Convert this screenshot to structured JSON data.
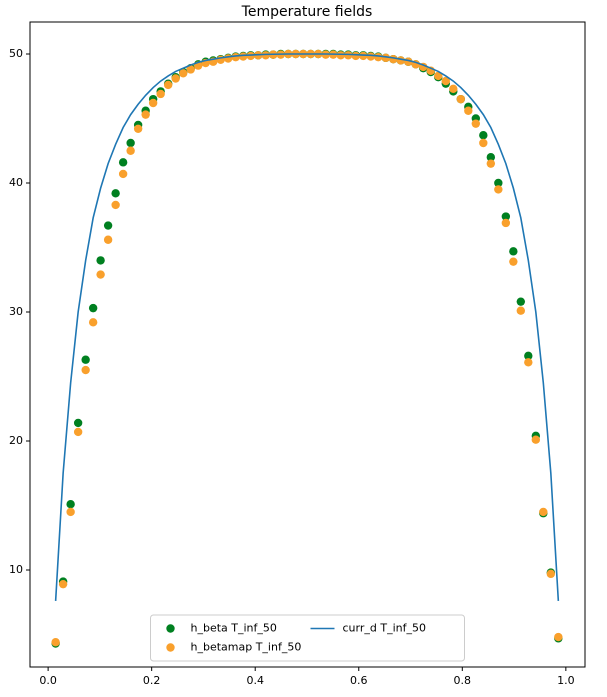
{
  "chart_data": {
    "type": "scatter",
    "title": "Temperature fields",
    "x": [
      0.0145,
      0.029,
      0.0435,
      0.058,
      0.0725,
      0.087,
      0.1014,
      0.1159,
      0.1304,
      0.1449,
      0.1594,
      0.1739,
      0.1884,
      0.2029,
      0.2174,
      0.2319,
      0.2464,
      0.2609,
      0.2754,
      0.2899,
      0.3043,
      0.3188,
      0.3333,
      0.3478,
      0.3623,
      0.3768,
      0.3913,
      0.4058,
      0.4203,
      0.4348,
      0.4493,
      0.4638,
      0.4783,
      0.4928,
      0.5072,
      0.5217,
      0.5362,
      0.5507,
      0.5652,
      0.5797,
      0.5942,
      0.6087,
      0.6232,
      0.6377,
      0.6522,
      0.6667,
      0.6812,
      0.6957,
      0.7101,
      0.7246,
      0.7391,
      0.7536,
      0.7681,
      0.7826,
      0.7971,
      0.8116,
      0.8261,
      0.8406,
      0.8551,
      0.8696,
      0.8841,
      0.8986,
      0.913,
      0.9275,
      0.942,
      0.9565,
      0.971,
      0.9855
    ],
    "series": [
      {
        "name": "h_beta T_inf_50",
        "type": "scatter",
        "color": "#008020",
        "values": [
          4.3,
          9.1,
          15.1,
          21.4,
          26.3,
          30.3,
          34.0,
          36.7,
          39.2,
          41.6,
          43.1,
          44.5,
          45.6,
          46.5,
          47.1,
          47.7,
          48.2,
          48.6,
          48.9,
          49.2,
          49.4,
          49.5,
          49.6,
          49.7,
          49.8,
          49.85,
          49.9,
          49.9,
          49.95,
          49.95,
          50,
          50,
          50,
          50,
          50,
          50,
          50,
          50,
          49.95,
          49.95,
          49.9,
          49.9,
          49.85,
          49.8,
          49.7,
          49.6,
          49.5,
          49.4,
          49.2,
          48.9,
          48.6,
          48.2,
          47.7,
          47.1,
          46.5,
          45.9,
          45.0,
          43.7,
          42.0,
          40.0,
          37.4,
          34.7,
          30.8,
          26.6,
          20.4,
          14.4,
          9.8,
          4.7
        ]
      },
      {
        "name": "h_betamap T_inf_50",
        "type": "scatter",
        "color": "#f9a02c",
        "values": [
          4.4,
          8.9,
          14.5,
          20.7,
          25.5,
          29.2,
          32.9,
          35.6,
          38.3,
          40.7,
          42.5,
          44.2,
          45.3,
          46.2,
          46.9,
          47.6,
          48.1,
          48.5,
          48.8,
          49.1,
          49.3,
          49.4,
          49.55,
          49.65,
          49.75,
          49.8,
          49.85,
          49.9,
          49.9,
          49.95,
          49.95,
          50,
          50,
          50,
          50,
          50,
          49.95,
          49.95,
          49.9,
          49.9,
          49.85,
          49.85,
          49.8,
          49.75,
          49.7,
          49.6,
          49.5,
          49.4,
          49.2,
          49.0,
          48.7,
          48.3,
          47.9,
          47.3,
          46.5,
          45.6,
          44.6,
          43.1,
          41.5,
          39.5,
          36.9,
          33.9,
          30.1,
          26.1,
          20.1,
          14.5,
          9.7,
          4.8
        ]
      },
      {
        "name": "curr_d T_inf_50",
        "type": "line",
        "color": "#1f77b4",
        "values": [
          7.6,
          17.5,
          24.5,
          30,
          34,
          37.3,
          39.6,
          41.5,
          43,
          44.3,
          45.3,
          46.1,
          46.8,
          47.4,
          47.9,
          48.3,
          48.65,
          48.9,
          49.15,
          49.35,
          49.5,
          49.6,
          49.7,
          49.78,
          49.85,
          49.9,
          49.92,
          49.95,
          49.97,
          49.98,
          49.99,
          50,
          50,
          50,
          50,
          50,
          50,
          49.99,
          49.98,
          49.97,
          49.95,
          49.92,
          49.9,
          49.85,
          49.78,
          49.7,
          49.6,
          49.5,
          49.35,
          49.15,
          48.9,
          48.65,
          48.3,
          47.9,
          47.4,
          46.8,
          46.1,
          45.3,
          44.3,
          43,
          41.5,
          39.6,
          37.3,
          34,
          30,
          24.5,
          17.5,
          7.6
        ]
      }
    ],
    "xlim": [
      -0.035,
      1.037
    ],
    "ylim": [
      2.48,
      52.48
    ],
    "xticks": [
      {
        "value": 0,
        "label": "0.0"
      },
      0.2,
      0.4,
      0.6,
      0.8,
      {
        "value": 1,
        "label": "1.0"
      }
    ],
    "yticks": [
      10,
      20,
      30,
      40,
      50
    ],
    "legend": "lower center",
    "legend_columns": 2
  }
}
